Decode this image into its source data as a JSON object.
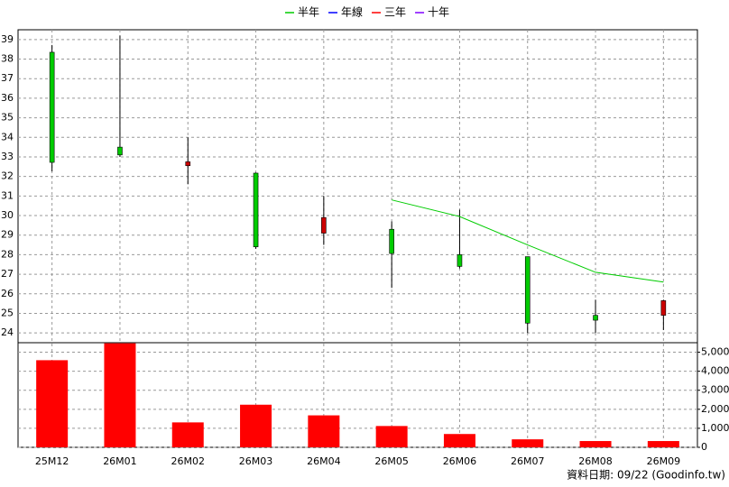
{
  "chart_data": [
    {
      "type": "candlestick",
      "categories": [
        "25M12",
        "26M01",
        "26M02",
        "26M03",
        "26M04",
        "26M05",
        "26M06",
        "26M07",
        "26M08",
        "26M09"
      ],
      "open": [
        38.35,
        33.5,
        32.55,
        32.17,
        29.1,
        29.3,
        28.0,
        27.9,
        24.9,
        24.9
      ],
      "high": [
        38.72,
        39.2,
        34.0,
        32.2,
        31.0,
        29.7,
        30.3,
        27.9,
        25.7,
        25.7
      ],
      "low": [
        32.26,
        33.0,
        31.6,
        28.3,
        28.5,
        26.3,
        27.3,
        24.0,
        24.0,
        24.15
      ],
      "close": [
        32.72,
        33.1,
        32.75,
        28.4,
        29.9,
        28.06,
        27.4,
        24.5,
        24.65,
        25.65
      ],
      "up_color": "#cc0000",
      "down_color": "#00cc00",
      "series": [
        {
          "name": "半年",
          "color": "#00cc00",
          "values": [
            null,
            null,
            null,
            null,
            null,
            30.8,
            29.95,
            28.5,
            27.1,
            26.6
          ]
        },
        {
          "name": "年線",
          "color": "#0000ff",
          "values": [
            null,
            null,
            null,
            null,
            null,
            null,
            null,
            null,
            null,
            null
          ]
        },
        {
          "name": "三年",
          "color": "#ff0000",
          "values": [
            null,
            null,
            null,
            null,
            null,
            null,
            null,
            null,
            null,
            null
          ]
        },
        {
          "name": "十年",
          "color": "#8000ff",
          "values": [
            null,
            null,
            null,
            null,
            null,
            null,
            null,
            null,
            null,
            null
          ]
        }
      ],
      "ylim": [
        23.5,
        39.5
      ],
      "yticks": [
        24,
        25,
        26,
        27,
        28,
        29,
        30,
        31,
        32,
        33,
        34,
        35,
        36,
        37,
        38,
        39
      ],
      "grid": true,
      "legend": "top"
    },
    {
      "type": "bar",
      "values": [
        4580,
        5470,
        1310,
        2240,
        1680,
        1120,
        700,
        420,
        330,
        330
      ],
      "color": "#ff0000",
      "ylim": [
        0,
        5500
      ],
      "yticks": [
        0,
        {
          "value": 1000,
          "label": "1,000"
        },
        {
          "value": 2000,
          "label": "2,000"
        },
        {
          "value": 3000,
          "label": "3,000"
        },
        {
          "value": 4000,
          "label": "4,000"
        },
        {
          "value": 5000,
          "label": "5,000"
        }
      ],
      "grid": true
    }
  ],
  "footer": "資料日期: 09/22  (Goodinfo.tw)"
}
